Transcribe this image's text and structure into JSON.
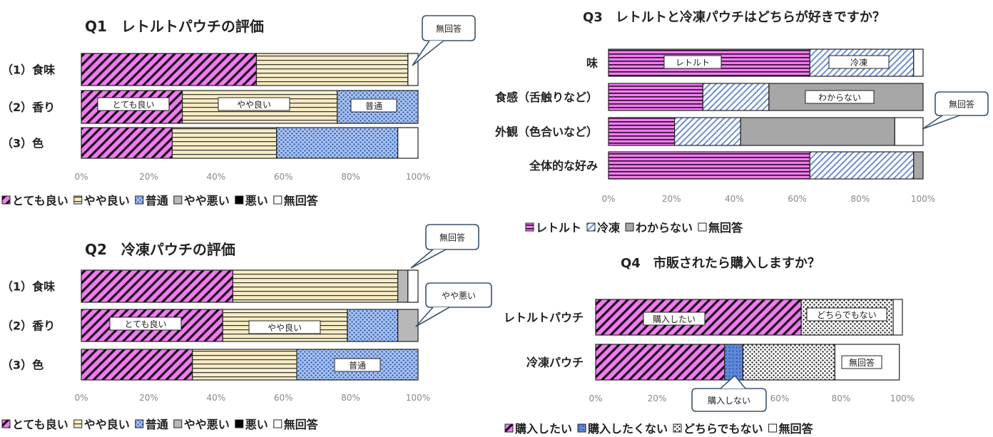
{
  "colors": {
    "pink": "#f07cf0",
    "stripe_dark": "#1a0a1a",
    "cream": "#f7ecc4",
    "blue": "#6f8fd4",
    "blue_light": "#a9c2ee",
    "gray": "#aaaaaa",
    "black": "#000000",
    "white": "#ffffff"
  },
  "chart_data": [
    {
      "id": "q1",
      "type": "bar",
      "stacked": "percent",
      "orientation": "horizontal",
      "title": "Q1　レトルトパウチの評価",
      "categories": [
        "（1）食味",
        "（2）香り",
        "（3）色"
      ],
      "series": [
        {
          "name": "とても良い",
          "values": [
            52,
            30,
            27
          ]
        },
        {
          "name": "やや良い",
          "values": [
            45,
            46,
            31
          ]
        },
        {
          "name": "普通",
          "values": [
            0,
            24,
            36
          ]
        },
        {
          "name": "やや悪い",
          "values": [
            0,
            0,
            0
          ]
        },
        {
          "name": "悪い",
          "values": [
            0,
            0,
            0
          ]
        },
        {
          "name": "無回答",
          "values": [
            3,
            0,
            6
          ]
        }
      ],
      "xlim": [
        0,
        100
      ],
      "xticks": [
        "0%",
        "20%",
        "40%",
        "60%",
        "80%",
        "100%"
      ],
      "legend_position": "bottom",
      "in_labels": [
        "とても良い",
        "やや良い",
        "普通"
      ],
      "callout": "無回答"
    },
    {
      "id": "q2",
      "type": "bar",
      "stacked": "percent",
      "orientation": "horizontal",
      "title": "Q2　冷凍パウチの評価",
      "categories": [
        "（1）食味",
        "（2）香り",
        "（3）色"
      ],
      "series": [
        {
          "name": "とても良い",
          "values": [
            45,
            42,
            33
          ]
        },
        {
          "name": "やや良い",
          "values": [
            49,
            37,
            31
          ]
        },
        {
          "name": "普通",
          "values": [
            0,
            15,
            36
          ]
        },
        {
          "name": "やや悪い",
          "values": [
            3,
            6,
            0
          ]
        },
        {
          "name": "悪い",
          "values": [
            0,
            0,
            0
          ]
        },
        {
          "name": "無回答",
          "values": [
            3,
            0,
            0
          ]
        }
      ],
      "xlim": [
        0,
        100
      ],
      "xticks": [
        "0%",
        "20%",
        "40%",
        "60%",
        "80%",
        "100%"
      ],
      "legend_position": "bottom",
      "in_labels": [
        "とても良い",
        "やや良い",
        "普通"
      ],
      "callouts": [
        "無回答",
        "やや悪い"
      ]
    },
    {
      "id": "q3",
      "type": "bar",
      "stacked": "percent",
      "orientation": "horizontal",
      "title": "Q3　レトルトと冷凍パウチはどちらが好きですか？",
      "categories": [
        "味",
        "食感（舌触りなど）",
        "外観（色合いなど）",
        "全体的な好み"
      ],
      "series": [
        {
          "name": "レトルト",
          "values": [
            64,
            30,
            21,
            64
          ]
        },
        {
          "name": "冷凍",
          "values": [
            33,
            21,
            21,
            33
          ]
        },
        {
          "name": "わからない",
          "values": [
            0,
            49,
            49,
            3
          ]
        },
        {
          "name": "無回答",
          "values": [
            3,
            0,
            9,
            0
          ]
        }
      ],
      "xlim": [
        0,
        100
      ],
      "xticks": [
        "0%",
        "20%",
        "40%",
        "60%",
        "80%",
        "100%"
      ],
      "legend_position": "bottom",
      "in_labels": [
        "レトルト",
        "冷凍",
        "わからない"
      ],
      "callout": "無回答"
    },
    {
      "id": "q4",
      "type": "bar",
      "stacked": "percent",
      "orientation": "horizontal",
      "title": "Q4　市販されたら購入しますか？",
      "categories": [
        "レトルトパウチ",
        "冷凍パウチ"
      ],
      "series": [
        {
          "name": "購入したい",
          "values": [
            67,
            42
          ]
        },
        {
          "name": "購入したくない",
          "values": [
            0,
            6
          ]
        },
        {
          "name": "どちらでもない",
          "values": [
            30,
            30
          ]
        },
        {
          "name": "無回答",
          "values": [
            3,
            21
          ]
        }
      ],
      "xlim": [
        0,
        100
      ],
      "xticks": [
        "0%",
        "20%",
        "40%",
        "60%",
        "80%",
        "100%"
      ],
      "legend_position": "bottom",
      "in_labels": [
        "購入したい",
        "どちらでもない",
        "無回答"
      ],
      "callout": "購入しない"
    }
  ]
}
